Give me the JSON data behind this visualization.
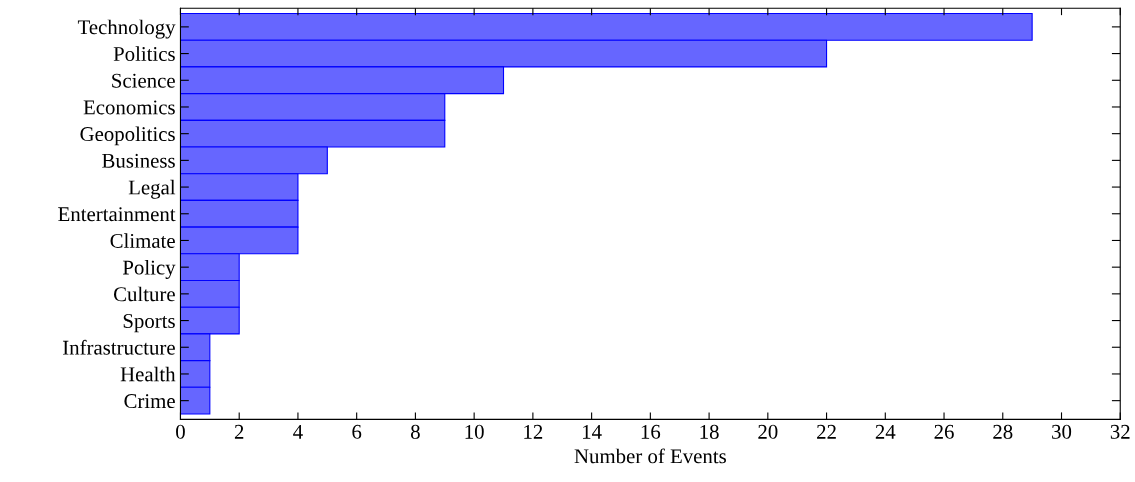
{
  "chart_data": {
    "type": "bar",
    "orientation": "horizontal",
    "xlabel": "Number of Events",
    "categories": [
      "Technology",
      "Politics",
      "Science",
      "Economics",
      "Geopolitics",
      "Business",
      "Legal",
      "Entertainment",
      "Climate",
      "Policy",
      "Culture",
      "Sports",
      "Infrastructure",
      "Health",
      "Crime"
    ],
    "values": [
      29,
      22,
      11,
      9,
      9,
      5,
      4,
      4,
      4,
      2,
      2,
      2,
      1,
      1,
      1
    ],
    "color": "#6666ff",
    "xlim": [
      0,
      32
    ],
    "xticks": [
      0,
      2,
      4,
      6,
      8,
      10,
      12,
      14,
      16,
      18,
      20,
      22,
      24,
      26,
      28,
      30,
      32
    ],
    "grid": false,
    "legend": false
  }
}
